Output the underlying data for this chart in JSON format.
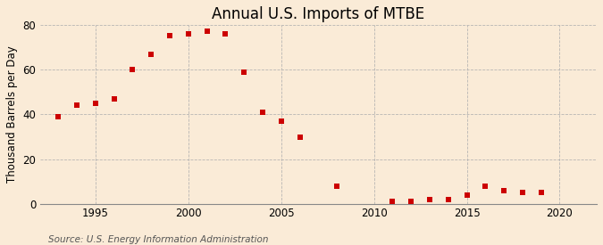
{
  "title": "Annual U.S. Imports of MTBE",
  "ylabel": "Thousand Barrels per Day",
  "source": "Source: U.S. Energy Information Administration",
  "background_color": "#faebd7",
  "marker_color": "#cc0000",
  "years": [
    1993,
    1994,
    1995,
    1996,
    1997,
    1998,
    1999,
    2000,
    2001,
    2002,
    2003,
    2004,
    2005,
    2006,
    2008,
    2011,
    2012,
    2013,
    2014,
    2015,
    2016,
    2017,
    2018,
    2019
  ],
  "values": [
    39,
    44,
    45,
    47,
    60,
    67,
    75,
    76,
    77,
    76,
    59,
    41,
    37,
    30,
    8,
    1,
    1,
    2,
    2,
    4,
    8,
    6,
    5,
    5
  ],
  "xlim": [
    1992,
    2022
  ],
  "ylim": [
    0,
    80
  ],
  "yticks": [
    0,
    20,
    40,
    60,
    80
  ],
  "xticks": [
    1995,
    2000,
    2005,
    2010,
    2015,
    2020
  ],
  "title_fontsize": 12,
  "label_fontsize": 8.5,
  "tick_fontsize": 8.5,
  "source_fontsize": 7.5,
  "marker_size": 18
}
